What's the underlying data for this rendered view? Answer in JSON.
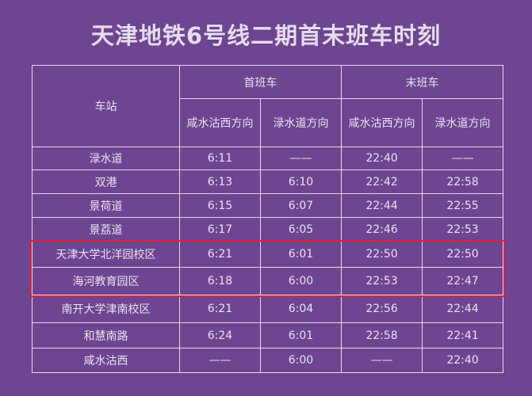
{
  "title": "天津地铁6号线二期首末班车时刻",
  "header": {
    "station": "车站",
    "first_train": "首班车",
    "last_train": "末班车",
    "dir_a": "咸水沽西方向",
    "dir_b": "渌水道方向"
  },
  "rows": [
    {
      "station": "渌水道",
      "first_a": "6:11",
      "first_b": "——",
      "last_a": "22:40",
      "last_b": "——"
    },
    {
      "station": "双港",
      "first_a": "6:13",
      "first_b": "6:10",
      "last_a": "22:42",
      "last_b": "22:58"
    },
    {
      "station": "景荷道",
      "first_a": "6:15",
      "first_b": "6:07",
      "last_a": "22:44",
      "last_b": "22:55"
    },
    {
      "station": "景荔道",
      "first_a": "6:17",
      "first_b": "6:05",
      "last_a": "22:46",
      "last_b": "22:53"
    },
    {
      "station": "天津大学北洋园校区",
      "first_a": "6:21",
      "first_b": "6:01",
      "last_a": "22:50",
      "last_b": "22:50"
    },
    {
      "station": "海河教育园区",
      "first_a": "6:18",
      "first_b": "6:00",
      "last_a": "22:53",
      "last_b": "22:47"
    },
    {
      "station": "南开大学津南校区",
      "first_a": "6:21",
      "first_b": "6:04",
      "last_a": "22:56",
      "last_b": "22:44"
    },
    {
      "station": "和慧南路",
      "first_a": "6:24",
      "first_b": "6:01",
      "last_a": "22:58",
      "last_b": "22:41"
    },
    {
      "station": "咸水沽西",
      "first_a": "——",
      "first_b": "6:00",
      "last_a": "——",
      "last_b": "22:40"
    }
  ],
  "highlight_color": "#e0203a",
  "background_color": "#6d4590"
}
